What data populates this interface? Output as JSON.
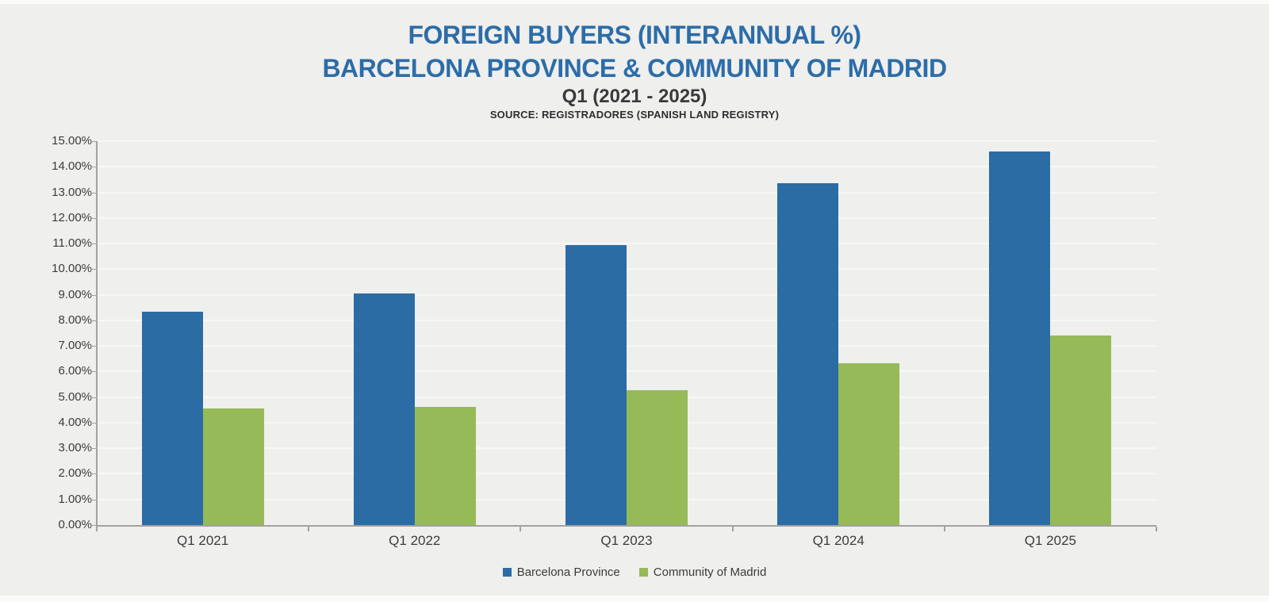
{
  "page": {
    "background": "#efefee"
  },
  "header": {
    "title_line1": "FOREIGN BUYERS (INTERANNUAL %)",
    "title_line2": "BARCELONA PROVINCE & COMMUNITY OF MADRID",
    "subtitle": "Q1 (2021 - 2025)",
    "source": "SOURCE: REGISTRADORES (SPANISH LAND REGISTRY)"
  },
  "chart_data": {
    "type": "bar",
    "title": "FOREIGN BUYERS (INTERANNUAL %) BARCELONA PROVINCE & COMMUNITY OF MADRID Q1 (2021 - 2025)",
    "xlabel": "",
    "ylabel": "",
    "categories": [
      "Q1 2021",
      "Q1 2022",
      "Q1 2023",
      "Q1 2024",
      "Q1 2025"
    ],
    "series": [
      {
        "name": "Barcelona Province",
        "color": "#2b6ca4",
        "values": [
          8.35,
          9.05,
          10.95,
          13.35,
          14.6
        ]
      },
      {
        "name": "Community of Madrid",
        "color": "#96ba58",
        "values": [
          4.55,
          4.62,
          5.28,
          6.33,
          7.42
        ]
      }
    ],
    "ylim": [
      0,
      15
    ],
    "y_tick_step": 1,
    "y_tick_labels": [
      "0.00%",
      "1.00%",
      "2.00%",
      "3.00%",
      "4.00%",
      "5.00%",
      "6.00%",
      "7.00%",
      "8.00%",
      "9.00%",
      "10.00%",
      "11.00%",
      "12.00%",
      "13.00%",
      "14.00%",
      "15.00%"
    ],
    "grid": true,
    "legend_position": "bottom"
  },
  "colors": {
    "title_blue": "#2c6da8",
    "axis_gray": "#a3a2a0",
    "label_gray": "#3c3c3c",
    "gridline": "#f7f7f5",
    "background": "#efefee"
  }
}
